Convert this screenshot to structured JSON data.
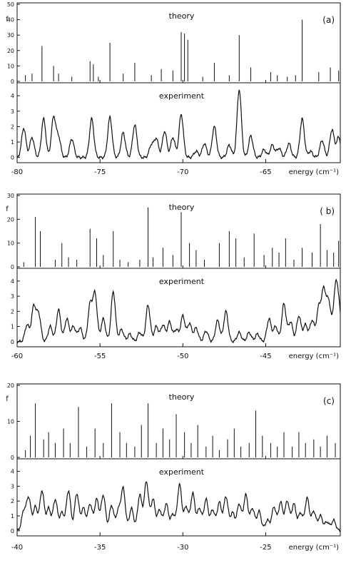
{
  "chart_data": [
    {
      "type": "line",
      "panel_label": "(a)",
      "xlabel": "energy (cm⁻¹)",
      "xlim": [
        -80,
        -60.5
      ],
      "xticks": [
        -80,
        -75,
        -70,
        -65
      ],
      "series": [
        {
          "name": "theory",
          "ylabel": "f",
          "kind": "stick",
          "ylim": [
            0,
            50
          ],
          "yticks": [
            0,
            10,
            20,
            30,
            40,
            50
          ],
          "x": [
            -79.5,
            -79.1,
            -78.5,
            -77.8,
            -77.5,
            -76.7,
            -75.6,
            -75.4,
            -75.1,
            -74.4,
            -73.6,
            -72.9,
            -71.9,
            -71.3,
            -70.6,
            -70.1,
            -69.9,
            -69.7,
            -68.8,
            -68.1,
            -67.2,
            -66.6,
            -65.9,
            -64.7,
            -64.3,
            -63.7,
            -63.2,
            -62.8,
            -61.8,
            -61.1,
            -60.6
          ],
          "values": [
            4,
            5,
            23,
            10,
            5,
            3,
            13,
            11,
            3,
            25,
            5,
            12,
            4,
            8,
            7,
            32,
            31,
            27,
            3,
            12,
            4,
            30,
            9,
            6,
            4,
            3,
            4,
            40,
            6,
            9,
            7
          ]
        },
        {
          "name": "experiment",
          "kind": "spectrum",
          "ylim": [
            -0.2,
            4.7
          ],
          "yticks": [
            0,
            1,
            2,
            3,
            4
          ],
          "peaks": [
            [
              -79.6,
              1.9
            ],
            [
              -79.1,
              1.3
            ],
            [
              -78.4,
              2.5
            ],
            [
              -77.8,
              2.6
            ],
            [
              -77.5,
              1.3
            ],
            [
              -76.7,
              1.2
            ],
            [
              -75.5,
              2.5
            ],
            [
              -74.4,
              2.6
            ],
            [
              -73.6,
              1.6
            ],
            [
              -72.9,
              2.1
            ],
            [
              -71.9,
              0.8
            ],
            [
              -71.6,
              1.2
            ],
            [
              -71.1,
              1.7
            ],
            [
              -70.6,
              1.3
            ],
            [
              -70.1,
              2.8
            ],
            [
              -69.2,
              0.4
            ],
            [
              -68.7,
              0.9
            ],
            [
              -68.1,
              2.0
            ],
            [
              -67.2,
              0.8
            ],
            [
              -66.6,
              4.4
            ],
            [
              -65.9,
              1.4
            ],
            [
              -65.1,
              0.5
            ],
            [
              -64.6,
              0.8
            ],
            [
              -64.2,
              0.6
            ],
            [
              -63.6,
              0.9
            ],
            [
              -62.8,
              2.5
            ],
            [
              -62.3,
              0.4
            ],
            [
              -61.6,
              1.1
            ],
            [
              -61.0,
              1.8
            ],
            [
              -60.6,
              1.3
            ]
          ]
        }
      ]
    },
    {
      "type": "line",
      "panel_label": "( b)",
      "xlabel": "energy (cm⁻¹)",
      "xlim": [
        -60,
        -40.5
      ],
      "xticks": [
        -60,
        -55,
        -50,
        -45
      ],
      "series": [
        {
          "name": "theory",
          "ylabel": "f",
          "kind": "stick",
          "ylim": [
            0,
            30
          ],
          "yticks": [
            0,
            10,
            20,
            30
          ],
          "x": [
            -59.6,
            -58.9,
            -58.6,
            -57.7,
            -57.3,
            -56.9,
            -56.4,
            -55.6,
            -55.2,
            -54.8,
            -54.2,
            -53.8,
            -53.3,
            -52.6,
            -52.1,
            -51.8,
            -51.2,
            -50.6,
            -50.1,
            -49.6,
            -49.2,
            -48.7,
            -47.8,
            -47.2,
            -46.8,
            -46.3,
            -45.7,
            -45.1,
            -44.6,
            -44.2,
            -43.8,
            -43.3,
            -42.8,
            -42.2,
            -41.7,
            -41.3,
            -40.9,
            -40.6
          ],
          "values": [
            2,
            21,
            15,
            3,
            10,
            4,
            3,
            16,
            12,
            5,
            15,
            3,
            2,
            3,
            25,
            4,
            8,
            5,
            23,
            10,
            7,
            3,
            10,
            15,
            12,
            4,
            14,
            5,
            8,
            6,
            12,
            3,
            8,
            6,
            18,
            7,
            6,
            11
          ]
        },
        {
          "name": "experiment",
          "kind": "spectrum",
          "ylim": [
            -0.2,
            4.7
          ],
          "yticks": [
            0,
            1,
            2,
            3,
            4
          ],
          "peaks": [
            [
              -59.4,
              1.1
            ],
            [
              -59.0,
              2.3
            ],
            [
              -58.7,
              1.8
            ],
            [
              -58.0,
              1.0
            ],
            [
              -57.5,
              2.1
            ],
            [
              -57.0,
              1.5
            ],
            [
              -56.6,
              1.0
            ],
            [
              -56.2,
              0.9
            ],
            [
              -55.6,
              2.4
            ],
            [
              -55.3,
              3.1
            ],
            [
              -54.8,
              1.5
            ],
            [
              -54.2,
              3.3
            ],
            [
              -53.7,
              0.8
            ],
            [
              -53.2,
              0.5
            ],
            [
              -52.6,
              0.6
            ],
            [
              -52.1,
              2.4
            ],
            [
              -51.6,
              1.0
            ],
            [
              -51.2,
              1.1
            ],
            [
              -50.8,
              1.3
            ],
            [
              -50.4,
              0.8
            ],
            [
              -50.0,
              1.7
            ],
            [
              -49.6,
              1.2
            ],
            [
              -49.2,
              0.9
            ],
            [
              -48.6,
              0.7
            ],
            [
              -47.9,
              1.4
            ],
            [
              -47.4,
              2.0
            ],
            [
              -46.6,
              0.6
            ],
            [
              -46.0,
              0.6
            ],
            [
              -45.5,
              0.5
            ],
            [
              -44.8,
              1.5
            ],
            [
              -44.4,
              1.0
            ],
            [
              -43.9,
              2.5
            ],
            [
              -43.5,
              1.3
            ],
            [
              -43.0,
              1.7
            ],
            [
              -42.6,
              1.1
            ],
            [
              -42.2,
              1.4
            ],
            [
              -41.8,
              2.2
            ],
            [
              -41.5,
              3.3
            ],
            [
              -41.2,
              2.6
            ],
            [
              -40.8,
              3.1
            ],
            [
              -40.6,
              2.2
            ]
          ]
        }
      ]
    },
    {
      "type": "line",
      "panel_label": "(c)",
      "xlabel": "energy (cm⁻¹)",
      "xlim": [
        -40,
        -20.5
      ],
      "xticks": [
        -40,
        -35,
        -30,
        -25
      ],
      "series": [
        {
          "name": "theory",
          "ylabel": "f",
          "kind": "stick",
          "ylim": [
            0,
            20
          ],
          "yticks": [
            0,
            10,
            20
          ],
          "x": [
            -39.5,
            -39.2,
            -38.9,
            -38.4,
            -38.1,
            -37.7,
            -37.2,
            -36.8,
            -36.3,
            -35.8,
            -35.3,
            -34.8,
            -34.3,
            -33.8,
            -33.4,
            -32.9,
            -32.5,
            -32.1,
            -31.6,
            -31.2,
            -30.8,
            -30.4,
            -29.9,
            -29.5,
            -29.1,
            -28.6,
            -28.2,
            -27.8,
            -27.3,
            -26.9,
            -26.5,
            -26.0,
            -25.6,
            -25.2,
            -24.7,
            -24.3,
            -23.9,
            -23.4,
            -23.0,
            -22.6,
            -22.1,
            -21.7,
            -21.3,
            -20.8
          ],
          "values": [
            2,
            6,
            15,
            5,
            7,
            4,
            8,
            4,
            14,
            3,
            8,
            4,
            15,
            7,
            4,
            3,
            9,
            15,
            4,
            8,
            5,
            12,
            7,
            4,
            9,
            3,
            6,
            2,
            5,
            8,
            3,
            4,
            13,
            6,
            4,
            3,
            7,
            3,
            7,
            4,
            5,
            3,
            6,
            4
          ]
        },
        {
          "name": "experiment",
          "kind": "spectrum",
          "ylim": [
            -0.2,
            4.7
          ],
          "yticks": [
            0,
            1,
            2,
            3,
            4
          ],
          "peaks": [
            [
              -39.6,
              1.3
            ],
            [
              -39.3,
              2.2
            ],
            [
              -38.9,
              1.6
            ],
            [
              -38.5,
              2.7
            ],
            [
              -38.1,
              1.5
            ],
            [
              -37.7,
              2.1
            ],
            [
              -37.3,
              1.2
            ],
            [
              -36.9,
              2.7
            ],
            [
              -36.4,
              2.5
            ],
            [
              -36.0,
              1.5
            ],
            [
              -35.6,
              1.8
            ],
            [
              -35.2,
              2.1
            ],
            [
              -34.8,
              2.4
            ],
            [
              -34.3,
              1.7
            ],
            [
              -33.9,
              1.3
            ],
            [
              -33.6,
              2.8
            ],
            [
              -33.1,
              1.5
            ],
            [
              -32.6,
              2.4
            ],
            [
              -32.2,
              3.3
            ],
            [
              -31.8,
              2.1
            ],
            [
              -31.4,
              1.4
            ],
            [
              -31.0,
              1.8
            ],
            [
              -30.6,
              1.1
            ],
            [
              -30.2,
              3.1
            ],
            [
              -29.8,
              1.6
            ],
            [
              -29.4,
              2.5
            ],
            [
              -29.0,
              1.5
            ],
            [
              -28.6,
              2.1
            ],
            [
              -28.2,
              1.4
            ],
            [
              -27.8,
              1.9
            ],
            [
              -27.4,
              2.3
            ],
            [
              -27.0,
              1.2
            ],
            [
              -26.6,
              1.8
            ],
            [
              -26.2,
              2.4
            ],
            [
              -25.8,
              1.5
            ],
            [
              -25.4,
              1.3
            ],
            [
              -24.9,
              0.7
            ],
            [
              -24.5,
              1.6
            ],
            [
              -24.1,
              1.9
            ],
            [
              -23.7,
              2.0
            ],
            [
              -23.3,
              1.8
            ],
            [
              -22.9,
              1.2
            ],
            [
              -22.5,
              2.2
            ],
            [
              -22.1,
              1.3
            ],
            [
              -21.7,
              1.0
            ],
            [
              -21.3,
              0.6
            ],
            [
              -20.9,
              0.7
            ]
          ]
        }
      ]
    }
  ]
}
